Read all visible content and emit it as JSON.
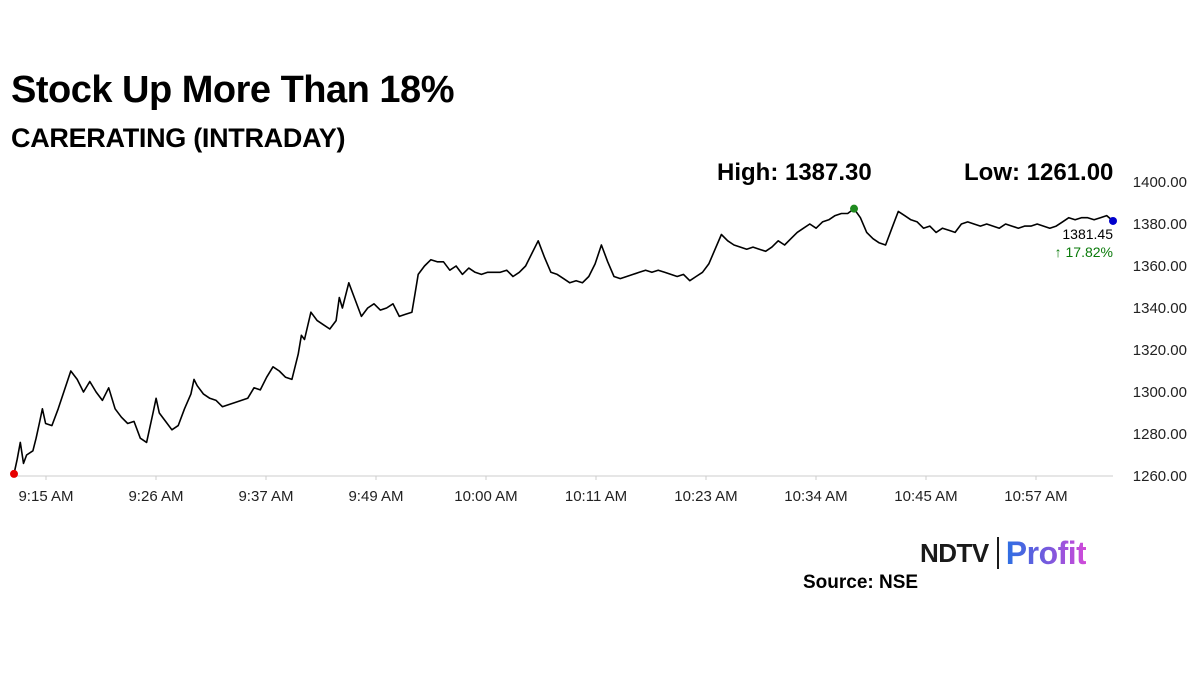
{
  "title": "Stock Up More Than 18%",
  "subtitle": "CARERATING (INTRADAY)",
  "high_label": "High: 1387.30",
  "low_label": "Low: 1261.00",
  "source": "Source: NSE",
  "logo": {
    "ndtv": "NDTV",
    "profit": "Profit"
  },
  "colors": {
    "line": "#000000",
    "start_marker": "#e60000",
    "high_marker": "#1f8a1f",
    "last_marker": "#0000cc",
    "change_text": "#0a7a0a",
    "axis": "#cccccc"
  },
  "chart_data": {
    "type": "line",
    "x_tick_labels": [
      "9:15 AM",
      "9:26 AM",
      "9:37 AM",
      "9:49 AM",
      "10:00 AM",
      "10:11 AM",
      "10:23 AM",
      "10:34 AM",
      "10:45 AM",
      "10:57 AM"
    ],
    "y_tick_labels": [
      "1260.00",
      "1280.00",
      "1300.00",
      "1320.00",
      "1340.00",
      "1360.00",
      "1380.00",
      "1400.00"
    ],
    "ylim": [
      1260,
      1400
    ],
    "x_minutes_range": [
      0,
      109
    ],
    "series": [
      {
        "points": [
          [
            0,
            1261
          ],
          [
            0.5,
            1268
          ],
          [
            1,
            1276
          ],
          [
            1.5,
            1266
          ],
          [
            2,
            1270
          ],
          [
            3,
            1272
          ],
          [
            3.5,
            1278
          ],
          [
            4,
            1285
          ],
          [
            4.5,
            1292
          ],
          [
            5,
            1285
          ],
          [
            6,
            1284
          ],
          [
            7,
            1292
          ],
          [
            8,
            1301
          ],
          [
            9,
            1310
          ],
          [
            10,
            1306
          ],
          [
            11,
            1300
          ],
          [
            12,
            1305
          ],
          [
            13,
            1300
          ],
          [
            14,
            1296
          ],
          [
            15,
            1302
          ],
          [
            16,
            1292
          ],
          [
            17,
            1288
          ],
          [
            18,
            1285
          ],
          [
            19,
            1286
          ],
          [
            20,
            1278
          ],
          [
            21,
            1276
          ],
          [
            22,
            1290
          ],
          [
            22.5,
            1297
          ],
          [
            23,
            1290
          ],
          [
            24,
            1286
          ],
          [
            25,
            1282
          ],
          [
            26,
            1284
          ],
          [
            27,
            1292
          ],
          [
            28,
            1299
          ],
          [
            28.5,
            1306
          ],
          [
            29,
            1303
          ],
          [
            30,
            1299
          ],
          [
            31,
            1297
          ],
          [
            32,
            1296
          ],
          [
            33,
            1293
          ],
          [
            34,
            1294
          ],
          [
            35,
            1295
          ],
          [
            36,
            1296
          ],
          [
            37,
            1297
          ],
          [
            38,
            1302
          ],
          [
            39,
            1301
          ],
          [
            40,
            1307
          ],
          [
            41,
            1312
          ],
          [
            42,
            1310
          ],
          [
            43,
            1307
          ],
          [
            44,
            1306
          ],
          [
            45,
            1318
          ],
          [
            45.5,
            1327
          ],
          [
            46,
            1325
          ],
          [
            47,
            1338
          ],
          [
            48,
            1334
          ],
          [
            49,
            1332
          ],
          [
            50,
            1330
          ],
          [
            51,
            1334
          ],
          [
            51.5,
            1345
          ],
          [
            52,
            1340
          ],
          [
            53,
            1352
          ],
          [
            54,
            1344
          ],
          [
            55,
            1336
          ],
          [
            56,
            1340
          ],
          [
            57,
            1342
          ],
          [
            58,
            1339
          ],
          [
            59,
            1340
          ],
          [
            60,
            1342
          ],
          [
            61,
            1336
          ],
          [
            62,
            1337
          ],
          [
            63,
            1338
          ],
          [
            63.5,
            1347
          ],
          [
            64,
            1356
          ],
          [
            65,
            1360
          ],
          [
            66,
            1363
          ],
          [
            67,
            1362
          ],
          [
            68,
            1362
          ],
          [
            69,
            1358
          ],
          [
            70,
            1360
          ],
          [
            71,
            1356
          ],
          [
            72,
            1359
          ],
          [
            73,
            1357
          ],
          [
            74,
            1356
          ],
          [
            75,
            1357
          ],
          [
            76,
            1357
          ],
          [
            77,
            1357
          ],
          [
            78,
            1358
          ],
          [
            79,
            1355
          ],
          [
            80,
            1357
          ],
          [
            81,
            1360
          ],
          [
            82,
            1366
          ],
          [
            83,
            1372
          ],
          [
            84,
            1364
          ],
          [
            85,
            1357
          ],
          [
            86,
            1356
          ],
          [
            87,
            1354
          ],
          [
            88,
            1352
          ],
          [
            89,
            1353
          ],
          [
            90,
            1352
          ],
          [
            91,
            1355
          ],
          [
            92,
            1361
          ],
          [
            93,
            1370
          ],
          [
            94,
            1362
          ],
          [
            95,
            1355
          ],
          [
            96,
            1354
          ],
          [
            97,
            1355
          ],
          [
            98,
            1356
          ],
          [
            99,
            1357
          ],
          [
            100,
            1358
          ],
          [
            101,
            1357
          ],
          [
            102,
            1358
          ],
          [
            103,
            1357
          ],
          [
            104,
            1356
          ],
          [
            105,
            1355
          ],
          [
            106,
            1356
          ],
          [
            107,
            1353
          ],
          [
            108,
            1355
          ],
          [
            109,
            1357
          ],
          [
            110,
            1361
          ],
          [
            111,
            1368
          ],
          [
            112,
            1375
          ],
          [
            113,
            1372
          ],
          [
            114,
            1370
          ],
          [
            115,
            1369
          ],
          [
            116,
            1368
          ],
          [
            117,
            1369
          ],
          [
            118,
            1368
          ],
          [
            119,
            1367
          ],
          [
            120,
            1369
          ],
          [
            121,
            1372
          ],
          [
            122,
            1370
          ],
          [
            123,
            1373
          ],
          [
            124,
            1376
          ],
          [
            125,
            1378
          ],
          [
            126,
            1380
          ],
          [
            127,
            1378
          ],
          [
            128,
            1381
          ],
          [
            129,
            1382
          ],
          [
            130,
            1384
          ],
          [
            131,
            1385
          ],
          [
            132,
            1385
          ],
          [
            133,
            1387.3
          ],
          [
            134,
            1383
          ],
          [
            135,
            1376
          ],
          [
            136,
            1373
          ],
          [
            137,
            1371
          ],
          [
            138,
            1370
          ],
          [
            139,
            1378
          ],
          [
            140,
            1386
          ],
          [
            141,
            1384
          ],
          [
            142,
            1382
          ],
          [
            143,
            1381
          ],
          [
            144,
            1378
          ],
          [
            145,
            1379
          ],
          [
            146,
            1376
          ],
          [
            147,
            1378
          ],
          [
            148,
            1377
          ],
          [
            149,
            1376
          ],
          [
            150,
            1380
          ],
          [
            151,
            1381
          ],
          [
            152,
            1380
          ],
          [
            153,
            1379
          ],
          [
            154,
            1380
          ],
          [
            155,
            1379
          ],
          [
            156,
            1378
          ],
          [
            157,
            1380
          ],
          [
            158,
            1379
          ],
          [
            159,
            1378
          ],
          [
            160,
            1379
          ],
          [
            161,
            1379
          ],
          [
            162,
            1380
          ],
          [
            163,
            1379
          ],
          [
            164,
            1378
          ],
          [
            165,
            1379
          ],
          [
            166,
            1381
          ],
          [
            167,
            1383
          ],
          [
            168,
            1382
          ],
          [
            169,
            1383
          ],
          [
            170,
            1383
          ],
          [
            171,
            1382
          ],
          [
            172,
            1383
          ],
          [
            173,
            1384
          ],
          [
            174,
            1381.45
          ]
        ]
      }
    ],
    "start_value": 1261,
    "high_value": 1387.3,
    "low_value": 1261,
    "last_value": "1381.45",
    "change": "↑ 17.82%",
    "grid": false
  }
}
